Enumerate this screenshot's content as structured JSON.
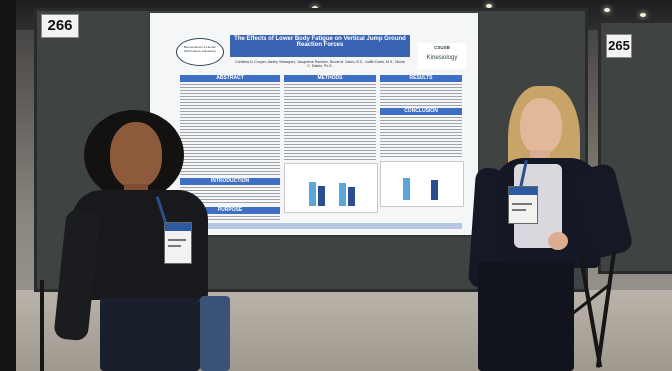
{
  "booths": {
    "left_number": "266",
    "right_number": "265"
  },
  "poster": {
    "title": "The Effects of Lower Body Fatigue on Vertical Jump Ground Reaction Forces",
    "authors": "Christina N. Cooper, Ashley Velasquez, Jacqueline Ramirez, Nicole M. Sahm, B.S., Judith Davis, M.S., Nicole C. Dabbs, Ph.D.",
    "logo_left_text": "Biomechanics & Human Performance Laboratory",
    "logo_right_top": "CSUSB",
    "logo_right_bottom": "Kinesiology",
    "sections": {
      "abstract": "ABSTRACT",
      "methods": "METHODS",
      "results": "RESULTS",
      "conclusion": "CONCLUSION",
      "introduction": "INTRODUCTION",
      "purpose": "PURPOSE"
    }
  },
  "colors": {
    "poster_header": "#3b63b4",
    "section_header": "#3f6fc4",
    "bar_pre": "#59a7d8",
    "bar_post": "#2a4f8f"
  }
}
